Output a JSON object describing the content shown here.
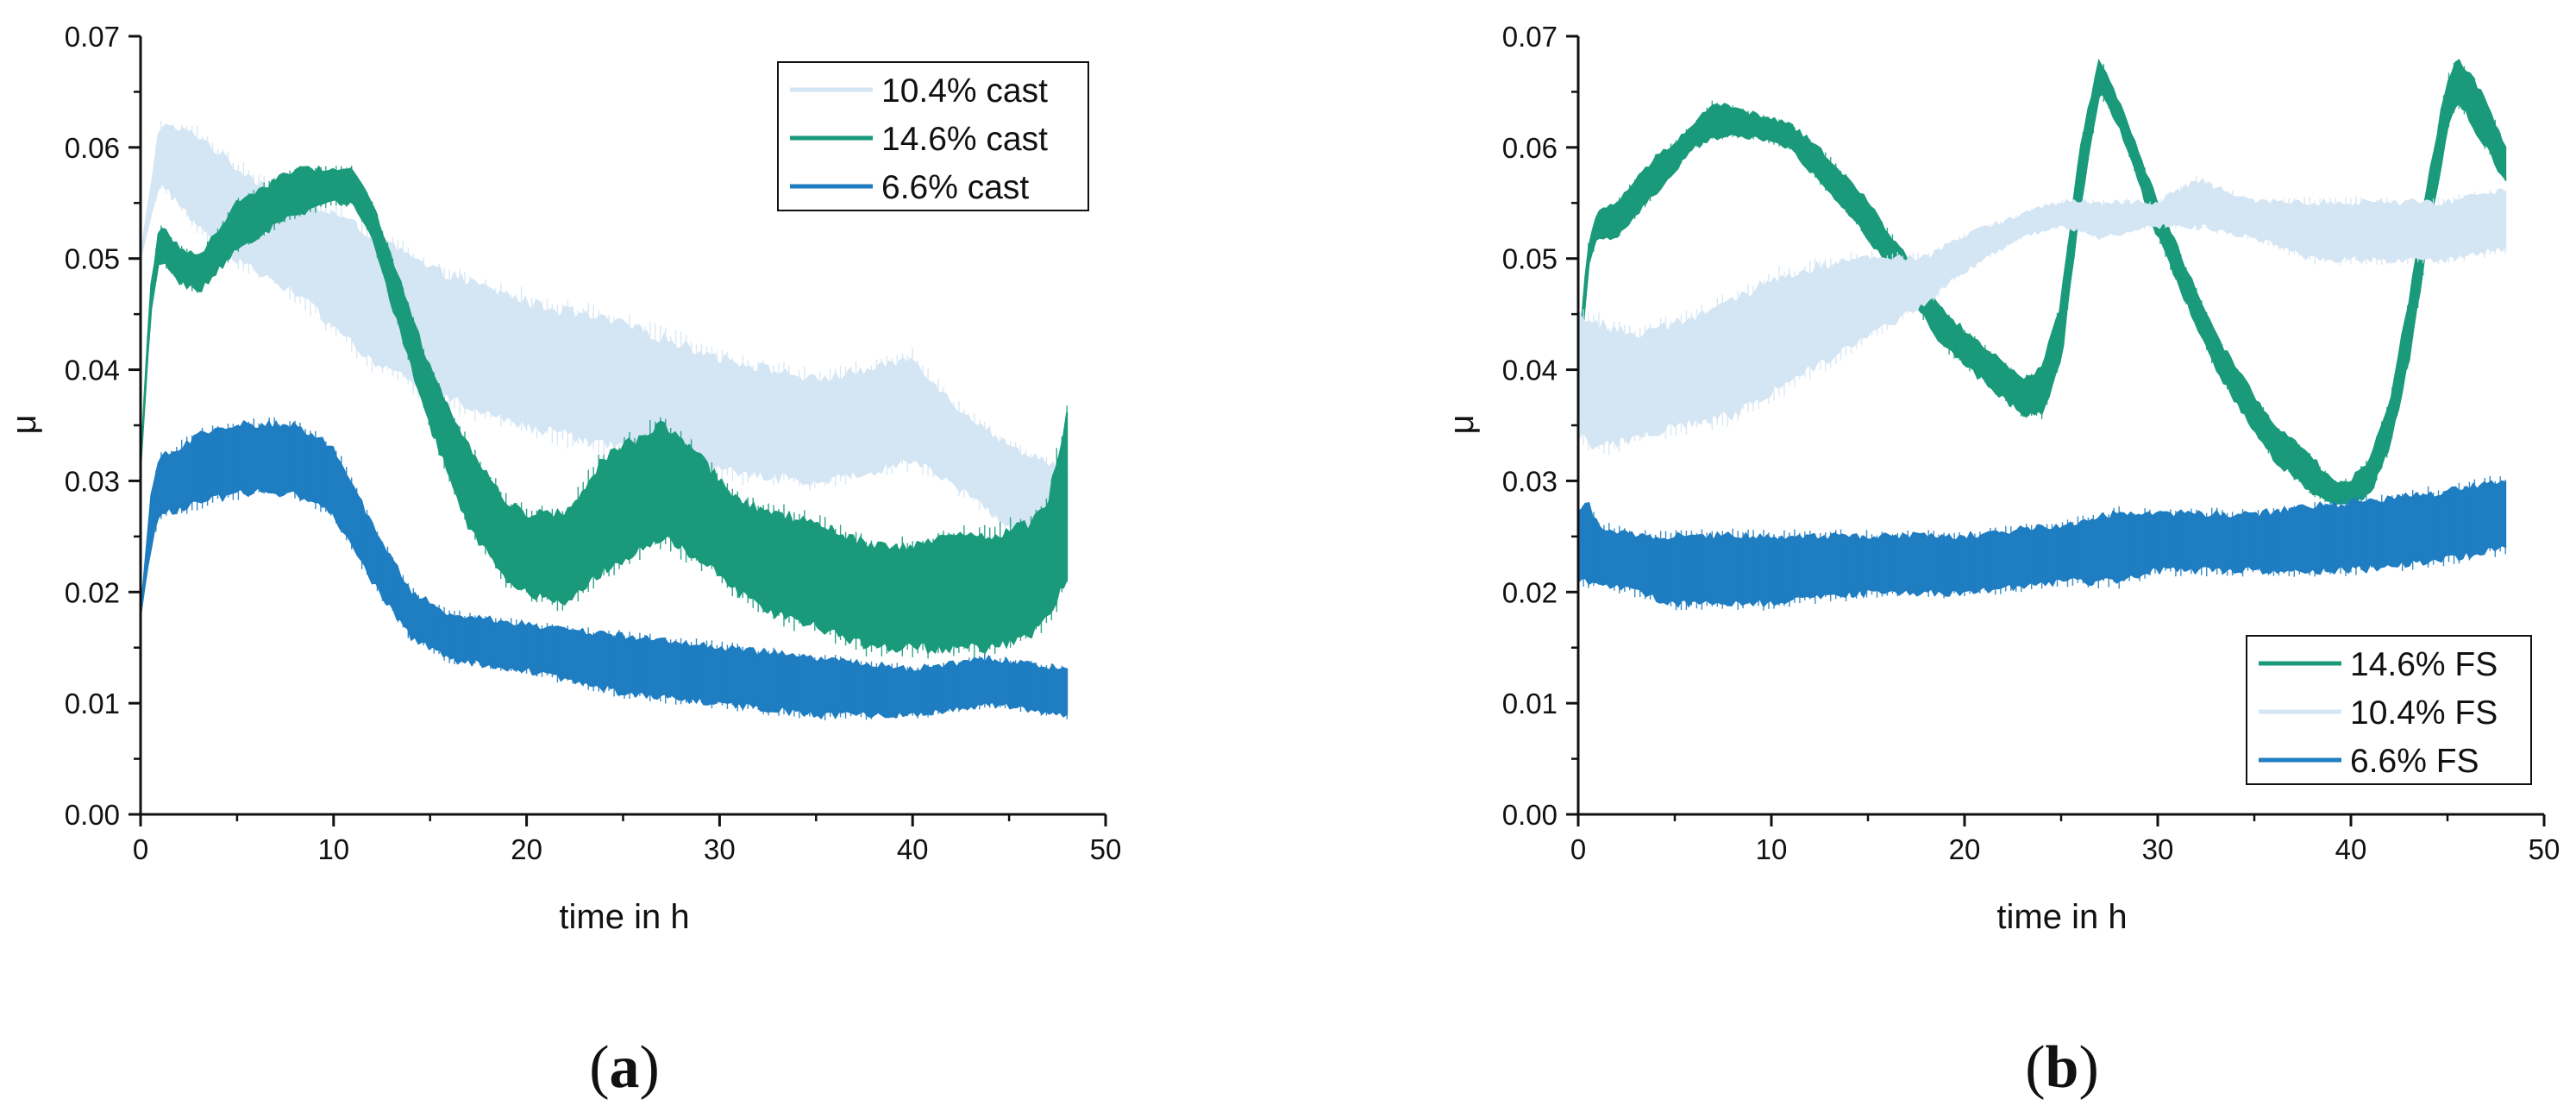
{
  "figure": {
    "panels": [
      {
        "id": "a",
        "caption_open": "(",
        "caption_letter": "a",
        "caption_close": ")"
      },
      {
        "id": "b",
        "caption_open": "(",
        "caption_letter": "b",
        "caption_close": ")"
      }
    ]
  },
  "chart_data": [
    {
      "type": "line",
      "panel": "a",
      "title": "",
      "xlabel": "time in h",
      "ylabel": "μ",
      "xlim": [
        0,
        50
      ],
      "ylim": [
        0.0,
        0.07
      ],
      "x_ticks": [
        0,
        10,
        20,
        30,
        40,
        50
      ],
      "y_ticks": [
        0.0,
        0.01,
        0.02,
        0.03,
        0.04,
        0.05,
        0.06,
        0.07
      ],
      "x_tick_labels": [
        "0",
        "10",
        "20",
        "30",
        "40",
        "50"
      ],
      "y_tick_labels": [
        "0.00",
        "0.01",
        "0.02",
        "0.03",
        "0.04",
        "0.05",
        "0.06",
        "0.07"
      ],
      "legend_position": "top-right",
      "series": [
        {
          "name": "10.4% cast",
          "color": "#d4e5f4",
          "x": [
            0,
            1,
            3,
            5,
            8,
            10,
            12,
            15,
            20,
            25,
            30,
            35,
            38,
            40,
            42,
            45,
            48
          ],
          "upper": [
            0.05,
            0.062,
            0.061,
            0.058,
            0.055,
            0.054,
            0.052,
            0.049,
            0.046,
            0.044,
            0.041,
            0.039,
            0.04,
            0.041,
            0.037,
            0.033,
            0.031
          ],
          "lower": [
            0.05,
            0.057,
            0.053,
            0.05,
            0.047,
            0.044,
            0.041,
            0.038,
            0.035,
            0.033,
            0.031,
            0.03,
            0.031,
            0.032,
            0.03,
            0.026,
            0.026
          ]
        },
        {
          "name": "14.6% cast",
          "color": "#1a9a7a",
          "x": [
            0,
            0.5,
            1,
            2,
            3,
            5,
            8,
            10,
            11,
            12,
            13,
            15,
            17,
            19,
            20,
            22,
            24,
            27,
            29,
            31,
            33,
            35,
            38,
            40,
            42,
            44,
            46,
            47,
            48
          ],
          "upper": [
            0.031,
            0.047,
            0.053,
            0.051,
            0.05,
            0.055,
            0.058,
            0.058,
            0.058,
            0.055,
            0.05,
            0.04,
            0.033,
            0.028,
            0.027,
            0.027,
            0.032,
            0.035,
            0.032,
            0.028,
            0.027,
            0.026,
            0.024,
            0.024,
            0.025,
            0.025,
            0.026,
            0.028,
            0.036
          ],
          "lower": [
            0.031,
            0.045,
            0.05,
            0.048,
            0.047,
            0.051,
            0.054,
            0.055,
            0.055,
            0.052,
            0.046,
            0.035,
            0.026,
            0.021,
            0.02,
            0.019,
            0.022,
            0.025,
            0.023,
            0.02,
            0.018,
            0.017,
            0.015,
            0.015,
            0.015,
            0.015,
            0.016,
            0.018,
            0.021
          ]
        },
        {
          "name": "6.6% cast",
          "color": "#1f7dc1",
          "x": [
            0,
            0.5,
            1,
            3,
            5,
            8,
            10,
            12,
            14,
            16,
            20,
            25,
            30,
            35,
            40,
            44,
            48
          ],
          "upper": [
            0.018,
            0.028,
            0.032,
            0.034,
            0.035,
            0.035,
            0.033,
            0.026,
            0.02,
            0.018,
            0.017,
            0.016,
            0.015,
            0.014,
            0.013,
            0.014,
            0.013
          ],
          "lower": [
            0.018,
            0.024,
            0.027,
            0.028,
            0.029,
            0.029,
            0.027,
            0.021,
            0.016,
            0.014,
            0.013,
            0.011,
            0.01,
            0.009,
            0.009,
            0.01,
            0.009
          ]
        }
      ]
    },
    {
      "type": "line",
      "panel": "b",
      "title": "",
      "xlabel": "time in h",
      "ylabel": "μ",
      "xlim": [
        0,
        50
      ],
      "ylim": [
        0.0,
        0.07
      ],
      "x_ticks": [
        0,
        10,
        20,
        30,
        40,
        50
      ],
      "y_ticks": [
        0.0,
        0.01,
        0.02,
        0.03,
        0.04,
        0.05,
        0.06,
        0.07
      ],
      "x_tick_labels": [
        "0",
        "10",
        "20",
        "30",
        "40",
        "50"
      ],
      "y_tick_labels": [
        "0.00",
        "0.01",
        "0.02",
        "0.03",
        "0.04",
        "0.05",
        "0.06",
        "0.07"
      ],
      "legend_position": "bottom-right",
      "series": [
        {
          "name": "14.6% FS",
          "color": "#1a9a7a",
          "x": [
            0,
            0.5,
            1,
            2,
            4,
            6,
            7,
            9,
            11,
            13,
            15,
            17,
            19,
            21,
            23,
            24,
            25,
            26,
            27,
            28,
            30,
            33,
            36,
            38,
            39,
            40,
            41,
            42,
            43,
            44,
            45,
            45.5,
            46,
            47,
            48
          ],
          "upper": [
            0.041,
            0.051,
            0.054,
            0.055,
            0.059,
            0.062,
            0.064,
            0.063,
            0.062,
            0.059,
            0.055,
            0.05,
            0.045,
            0.042,
            0.039,
            0.04,
            0.046,
            0.06,
            0.068,
            0.064,
            0.055,
            0.043,
            0.035,
            0.032,
            0.03,
            0.03,
            0.032,
            0.037,
            0.046,
            0.057,
            0.066,
            0.068,
            0.067,
            0.064,
            0.06
          ],
          "lower": [
            0.039,
            0.049,
            0.052,
            0.052,
            0.056,
            0.06,
            0.061,
            0.061,
            0.06,
            0.056,
            0.052,
            0.047,
            0.042,
            0.039,
            0.036,
            0.036,
            0.041,
            0.055,
            0.065,
            0.062,
            0.052,
            0.04,
            0.032,
            0.029,
            0.028,
            0.028,
            0.029,
            0.033,
            0.041,
            0.052,
            0.062,
            0.064,
            0.063,
            0.06,
            0.057
          ]
        },
        {
          "name": "10.4% FS",
          "color": "#d4e5f4",
          "x": [
            0,
            1,
            3,
            5,
            8,
            10,
            12,
            15,
            18,
            20,
            23,
            25,
            27,
            30,
            32,
            35,
            38,
            40,
            45,
            48
          ],
          "upper": [
            0.045,
            0.044,
            0.043,
            0.044,
            0.046,
            0.048,
            0.049,
            0.05,
            0.05,
            0.052,
            0.054,
            0.055,
            0.055,
            0.055,
            0.057,
            0.055,
            0.055,
            0.055,
            0.055,
            0.056
          ],
          "lower": [
            0.034,
            0.033,
            0.034,
            0.035,
            0.036,
            0.038,
            0.04,
            0.043,
            0.046,
            0.049,
            0.052,
            0.053,
            0.052,
            0.053,
            0.053,
            0.052,
            0.05,
            0.05,
            0.05,
            0.051
          ]
        },
        {
          "name": "6.6% FS",
          "color": "#1f7dc1",
          "x": [
            0,
            0.5,
            1,
            3,
            5,
            10,
            15,
            20,
            25,
            28,
            30,
            35,
            40,
            45,
            48
          ],
          "upper": [
            0.027,
            0.028,
            0.026,
            0.025,
            0.025,
            0.025,
            0.025,
            0.025,
            0.026,
            0.027,
            0.027,
            0.027,
            0.028,
            0.029,
            0.03
          ],
          "lower": [
            0.021,
            0.021,
            0.021,
            0.02,
            0.019,
            0.019,
            0.02,
            0.02,
            0.021,
            0.021,
            0.022,
            0.022,
            0.022,
            0.023,
            0.024
          ]
        }
      ]
    }
  ]
}
